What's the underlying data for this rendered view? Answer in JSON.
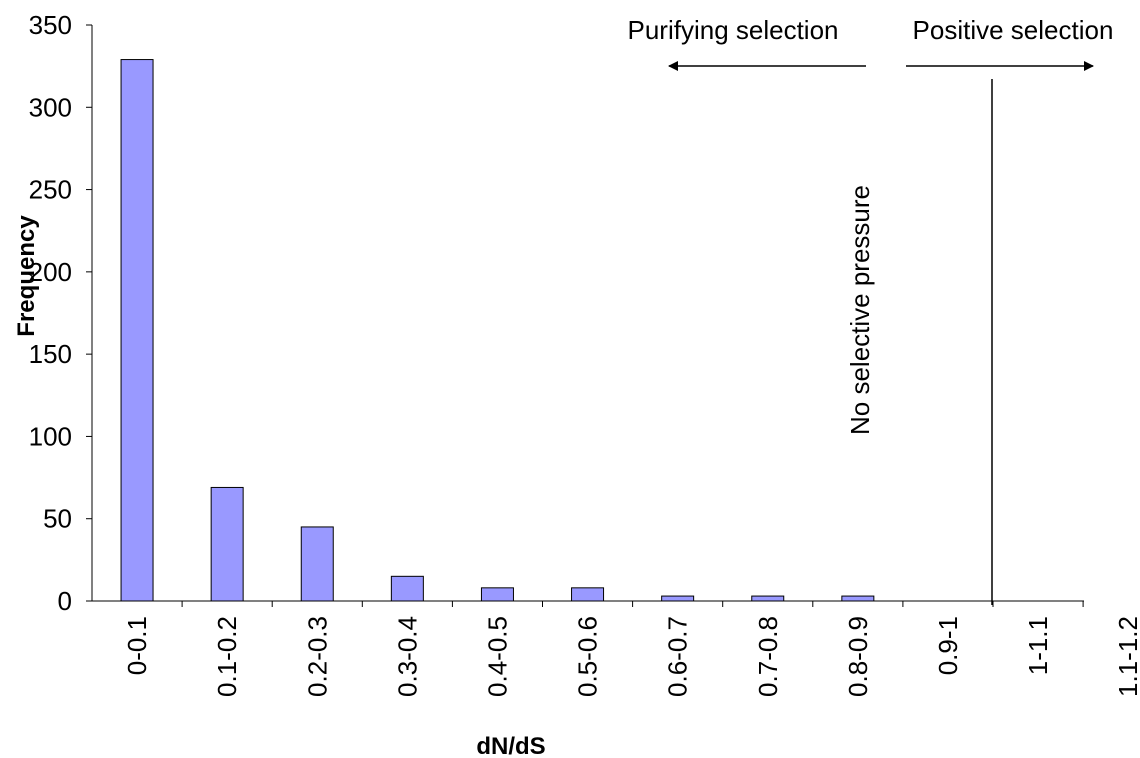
{
  "chart_data": {
    "type": "bar",
    "categories": [
      "0-0.1",
      "0.1-0.2",
      "0.2-0.3",
      "0.3-0.4",
      "0.4-0.5",
      "0.5-0.6",
      "0.6-0.7",
      "0.7-0.8",
      "0.8-0.9",
      "0.9-1",
      "1-1.1",
      "1.1-1.2"
    ],
    "values": [
      329,
      69,
      45,
      15,
      8,
      8,
      3,
      3,
      3,
      0,
      0,
      0
    ],
    "xlabel": "dN/dS",
    "ylabel": "Frequency",
    "ylim": [
      0,
      350
    ],
    "yticks": [
      0,
      50,
      100,
      150,
      200,
      250,
      300,
      350
    ],
    "grid": false,
    "colors": {
      "bar_fill": "#9999ff",
      "bar_stroke": "#000000"
    },
    "annotations": {
      "purifying": "Purifying selection",
      "positive": "Positive selection",
      "neutral": "No selective pressure"
    }
  }
}
